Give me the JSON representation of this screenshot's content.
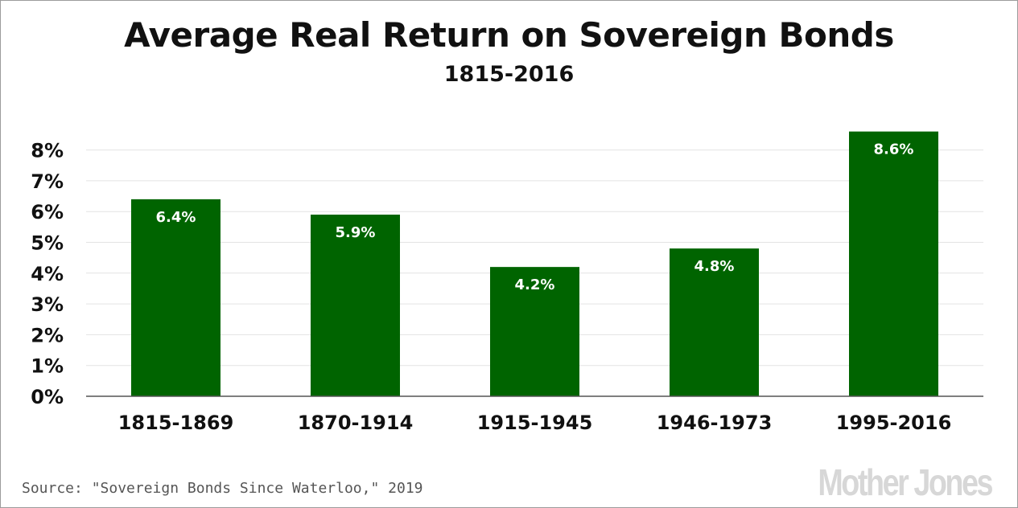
{
  "chart_data": {
    "type": "bar",
    "title": "Average Real Return on Sovereign Bonds",
    "subtitle": "1815-2016",
    "categories": [
      "1815-1869",
      "1870-1914",
      "1915-1945",
      "1946-1973",
      "1995-2016"
    ],
    "values": [
      6.4,
      5.9,
      4.2,
      4.8,
      8.6
    ],
    "data_labels": [
      "6.4%",
      "5.9%",
      "4.2%",
      "4.8%",
      "8.6%"
    ],
    "yticks": [
      "0%",
      "1%",
      "2%",
      "3%",
      "4%",
      "5%",
      "6%",
      "7%",
      "8%"
    ],
    "ylim": [
      0,
      8.6
    ],
    "grid": true,
    "bar_color": "#006400",
    "xlabel": "",
    "ylabel": ""
  },
  "source": "Source: \"Sovereign Bonds Since Waterloo,\" 2019",
  "logo": "Mother Jones"
}
